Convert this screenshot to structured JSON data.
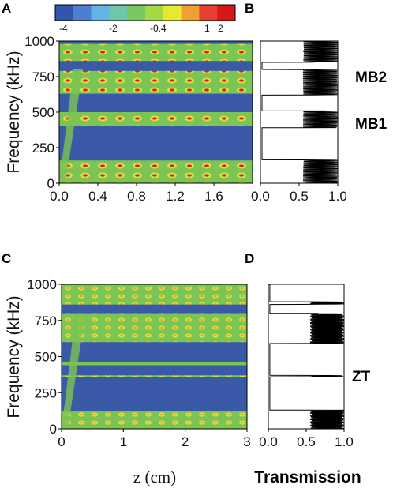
{
  "colors": {
    "colorbar": [
      "#3355b0",
      "#4d7fd0",
      "#62b6e6",
      "#6fc6a8",
      "#78c860",
      "#a6d845",
      "#e8e830",
      "#f0a030",
      "#e84030",
      "#d81818"
    ],
    "background": "#3a5aa8",
    "band_green": "#7cc453",
    "band_yellow": "#d6e040",
    "hot": "#e02020",
    "line": "#000000"
  },
  "figure": {
    "panel_letters": [
      "A",
      "B",
      "C",
      "D"
    ],
    "band_labels": [
      "MB2",
      "MB1",
      "ZT"
    ],
    "x_title": "z (cm)",
    "trans_title": "Transmission",
    "colorbar_labels": [
      "-4",
      "-2",
      "-0.4",
      "1",
      "2"
    ]
  },
  "chart_data": [
    {
      "panel": "A",
      "type": "heatmap",
      "ylabel": "Frequency (kHz)",
      "xlim": [
        0,
        2.0
      ],
      "ylim": [
        0,
        1000
      ],
      "x_ticks": [
        "0.0",
        "0.4",
        "0.8",
        "1.2",
        "1.6"
      ],
      "y_ticks": [
        "0",
        "250",
        "500",
        "750",
        "1000"
      ],
      "colorbar": {
        "labels": [
          "-4",
          "-2",
          "-0.4",
          "1",
          "2"
        ]
      },
      "bands_khz": [
        [
          0,
          160
        ],
        [
          400,
          500
        ],
        [
          630,
          790
        ],
        [
          860,
          980
        ]
      ]
    },
    {
      "panel": "B",
      "type": "line",
      "xlim": [
        0,
        1.0
      ],
      "ylim": [
        0,
        1000
      ],
      "x_ticks": [
        "0.0",
        "0.5",
        "1.0"
      ],
      "annotations": [
        "MB2",
        "MB1"
      ],
      "stop_bands_khz": [
        [
          170,
          390
        ],
        [
          510,
          620
        ],
        [
          800,
          850
        ]
      ]
    },
    {
      "panel": "C",
      "type": "heatmap",
      "ylabel": "Frequency (kHz)",
      "xlim": [
        0,
        3
      ],
      "ylim": [
        0,
        1000
      ],
      "x_ticks": [
        "0",
        "1",
        "2",
        "3"
      ],
      "y_ticks": [
        "0",
        "250",
        "500",
        "750",
        "1000"
      ],
      "bands_khz": [
        [
          0,
          120
        ],
        [
          370,
          370
        ],
        [
          440,
          460
        ],
        [
          600,
          800
        ],
        [
          860,
          1000
        ]
      ]
    },
    {
      "panel": "D",
      "type": "line",
      "xlim": [
        0,
        1.0
      ],
      "ylim": [
        0,
        1000
      ],
      "x_ticks": [
        "0.0",
        "0.5",
        "1.0"
      ],
      "annotations": [
        "ZT"
      ]
    }
  ]
}
